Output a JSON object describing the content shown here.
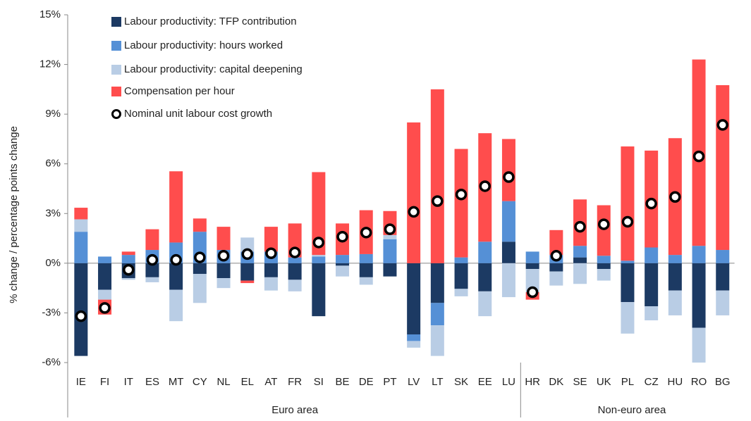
{
  "chart_data": {
    "type": "stacked-bar",
    "y_label": "% change / percentage points change",
    "categories": [
      "IE",
      "FI",
      "IT",
      "ES",
      "MT",
      "CY",
      "NL",
      "EL",
      "AT",
      "FR",
      "SI",
      "BE",
      "DE",
      "PT",
      "LV",
      "LT",
      "SK",
      "EE",
      "LU",
      "HR",
      "DK",
      "SE",
      "UK",
      "PL",
      "CZ",
      "HU",
      "RO",
      "BG"
    ],
    "groups": [
      {
        "label": "Euro area",
        "span": 19
      },
      {
        "label": "Non-euro area",
        "span": 9
      }
    ],
    "series": [
      {
        "name": "Labour productivity: TFP contribution",
        "color": "#1c3a63",
        "values": [
          -5.6,
          -1.6,
          -0.9,
          -0.85,
          -1.6,
          -0.65,
          -0.9,
          -1.05,
          -0.85,
          -1.0,
          -3.2,
          -0.15,
          -0.85,
          -0.8,
          -4.3,
          -2.4,
          -1.55,
          -1.7,
          1.3,
          -0.35,
          -0.5,
          0.35,
          -0.35,
          -2.35,
          -2.6,
          -1.65,
          -3.9,
          -1.65
        ]
      },
      {
        "name": "Labour productivity: hours worked",
        "color": "#5590d6",
        "values": [
          1.9,
          0.4,
          0.5,
          0.8,
          1.25,
          1.9,
          0.8,
          0.7,
          0.7,
          0.35,
          0.4,
          0.5,
          0.55,
          1.45,
          -0.4,
          -1.35,
          0.35,
          1.3,
          2.45,
          0.7,
          0.5,
          0.7,
          0.45,
          0.15,
          0.95,
          0.5,
          1.05,
          0.8
        ]
      },
      {
        "name": "Labour productivity: capital deepening",
        "color": "#b9cde5",
        "values": [
          0.75,
          -0.6,
          -0.1,
          -0.3,
          -1.9,
          -1.75,
          -0.6,
          0.85,
          -0.8,
          -0.7,
          0.1,
          -0.65,
          -0.45,
          0.25,
          -0.4,
          -1.85,
          -0.45,
          -1.5,
          -2.05,
          -1.4,
          -0.85,
          -1.25,
          -0.7,
          -1.9,
          -0.85,
          -1.5,
          -2.1,
          -1.5
        ]
      },
      {
        "name": "Compensation per hour",
        "color": "#ff4d4d",
        "values": [
          0.7,
          -0.9,
          0.2,
          1.25,
          4.3,
          0.8,
          1.4,
          -0.15,
          1.5,
          2.05,
          5.0,
          1.9,
          2.65,
          1.45,
          8.5,
          10.5,
          6.55,
          6.55,
          3.75,
          -0.45,
          1.5,
          2.8,
          3.05,
          6.9,
          5.85,
          7.05,
          11.25,
          9.95
        ]
      }
    ],
    "markers": {
      "name": "Nominal unit labour cost growth",
      "color": "#ffffff",
      "edge_color": "#000000",
      "values": [
        -3.2,
        -2.7,
        -0.4,
        0.2,
        0.2,
        0.35,
        0.45,
        0.55,
        0.6,
        0.65,
        1.25,
        1.6,
        1.85,
        2.05,
        3.1,
        3.75,
        4.15,
        4.65,
        5.2,
        -1.75,
        0.45,
        2.2,
        2.35,
        2.5,
        3.6,
        4.0,
        6.45,
        8.35
      ]
    },
    "ylim": [
      -6,
      15
    ],
    "yticks": [
      {
        "value": -6,
        "label": "-6%"
      },
      {
        "value": -3,
        "label": "-3%"
      },
      {
        "value": 0,
        "label": "0%"
      },
      {
        "value": 3,
        "label": "3%"
      },
      {
        "value": 6,
        "label": "6%"
      },
      {
        "value": 9,
        "label": "9%"
      },
      {
        "value": 12,
        "label": "12%"
      },
      {
        "value": 15,
        "label": "15%"
      }
    ],
    "legend": "top-left"
  }
}
